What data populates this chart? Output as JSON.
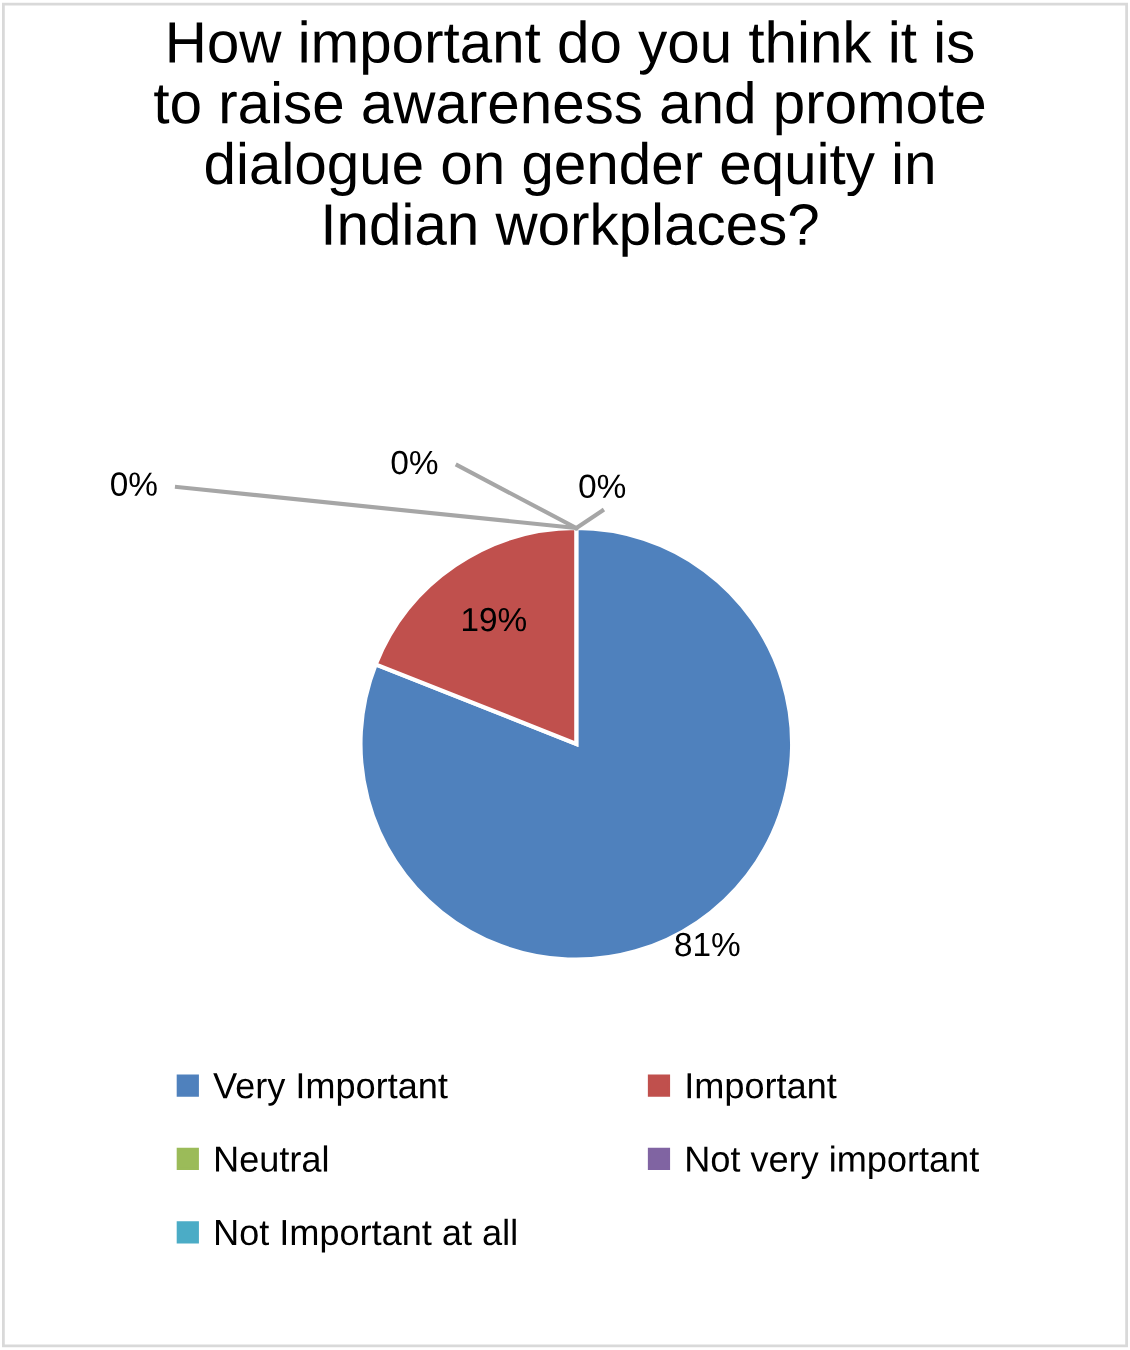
{
  "chart_data": {
    "type": "pie",
    "title": "How important do you think it is to raise awareness and promote dialogue on gender equity in Indian workplaces?",
    "categories": [
      "Very Important",
      "Important",
      "Neutral",
      "Not very important",
      "Not Important at all"
    ],
    "values": [
      81,
      19,
      0,
      0,
      0
    ],
    "colors": [
      "#4f81bd",
      "#c0504d",
      "#9bbb59",
      "#8064a2",
      "#4bacc6"
    ],
    "value_labels": [
      "81%",
      "19%",
      "0%",
      "0%",
      "0%"
    ],
    "legend": "bottom"
  }
}
